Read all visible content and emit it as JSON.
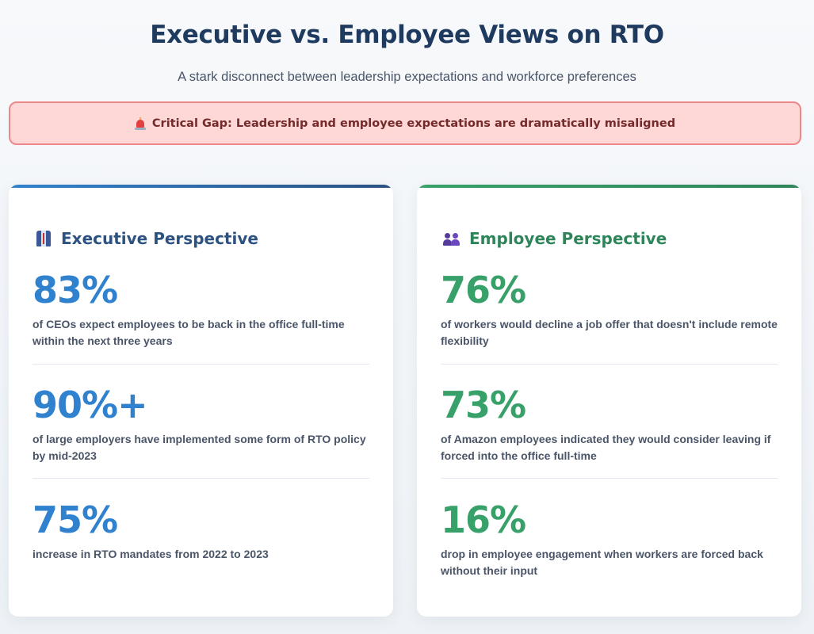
{
  "header": {
    "title": "Executive vs. Employee Views on RTO",
    "subtitle": "A stark disconnect between leadership expectations and workforce preferences"
  },
  "alert": {
    "icon": "siren-icon",
    "text": "Critical Gap: Leadership and employee expectations are dramatically misaligned",
    "color": "#fed7d7"
  },
  "executive": {
    "title": "Executive Perspective",
    "icon": "executive-icon",
    "accent": "#3182ce",
    "stats": [
      {
        "value": "83%",
        "desc": "of CEOs expect employees to be back in the office full-time within the next three years"
      },
      {
        "value": "90%+",
        "desc": "of large employers have implemented some form of RTO policy by mid-2023"
      },
      {
        "value": "75%",
        "desc": "increase in RTO mandates from 2022 to 2023"
      }
    ]
  },
  "employee": {
    "title": "Employee Perspective",
    "icon": "employees-icon",
    "accent": "#38a169",
    "stats": [
      {
        "value": "76%",
        "desc": "of workers would decline a job offer that doesn't include remote flexibility"
      },
      {
        "value": "73%",
        "desc": "of Amazon employees indicated they would consider leaving if forced into the office full-time"
      },
      {
        "value": "16%",
        "desc": "drop in employee engagement when workers are forced back without their input"
      }
    ]
  }
}
